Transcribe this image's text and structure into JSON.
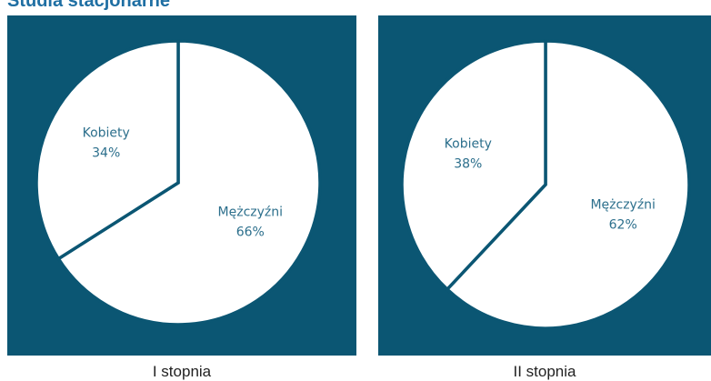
{
  "title": "Studia stacjonarne",
  "chart_data": [
    {
      "type": "pie",
      "title": "I stopnia",
      "categories": [
        "Mężczyźni",
        "Kobiety"
      ],
      "values": [
        66,
        34
      ],
      "value_labels": [
        "66%",
        "34%"
      ],
      "colors": [
        "#ffffff",
        "#ffffff"
      ],
      "background": "#0b5673"
    },
    {
      "type": "pie",
      "title": "II stopnia",
      "categories": [
        "Mężczyźni",
        "Kobiety"
      ],
      "values": [
        62,
        38
      ],
      "value_labels": [
        "62%",
        "38%"
      ],
      "colors": [
        "#ffffff",
        "#ffffff"
      ],
      "background": "#0b5673"
    }
  ]
}
